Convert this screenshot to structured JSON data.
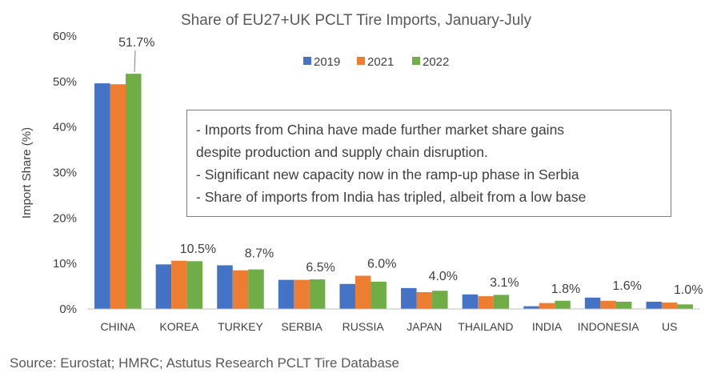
{
  "chart_data": {
    "type": "bar",
    "title": "Share of EU27+UK PCLT Tire Imports, January-July",
    "xlabel": "",
    "ylabel": "Import Share (%)",
    "ylim": [
      0,
      60
    ],
    "yticks": [
      "0%",
      "10%",
      "20%",
      "30%",
      "40%",
      "50%",
      "60%"
    ],
    "grid": false,
    "legend_position": "top-center",
    "categories": [
      "CHINA",
      "KOREA",
      "TURKEY",
      "SERBIA",
      "RUSSIA",
      "JAPAN",
      "THAILAND",
      "INDIA",
      "INDONESIA",
      "US"
    ],
    "series": [
      {
        "name": "2019",
        "color": "#4472c4",
        "values": [
          49.6,
          9.8,
          9.6,
          6.4,
          5.5,
          4.6,
          3.2,
          0.6,
          2.5,
          1.6
        ]
      },
      {
        "name": "2021",
        "color": "#ed7d31",
        "values": [
          49.4,
          10.6,
          8.5,
          6.4,
          7.3,
          3.7,
          2.8,
          1.3,
          1.8,
          1.4
        ]
      },
      {
        "name": "2022",
        "color": "#70ad47",
        "values": [
          51.7,
          10.5,
          8.7,
          6.5,
          6.0,
          4.0,
          3.1,
          1.8,
          1.6,
          1.0
        ]
      }
    ],
    "data_labels": [
      "51.7%",
      "10.5%",
      "8.7%",
      "6.5%",
      "6.0%",
      "4.0%",
      "3.1%",
      "1.8%",
      "1.6%",
      "1.0%"
    ]
  },
  "annotation": {
    "lines": [
      "- Imports from China have made further market share gains",
      "despite production and supply chain disruption.",
      "- Significant new capacity now in the ramp-up phase in Serbia",
      "- Share of imports from India has tripled, albeit from a low base"
    ]
  },
  "source": "Source: Eurostat; HMRC; Astutus Research PCLT Tire Database"
}
